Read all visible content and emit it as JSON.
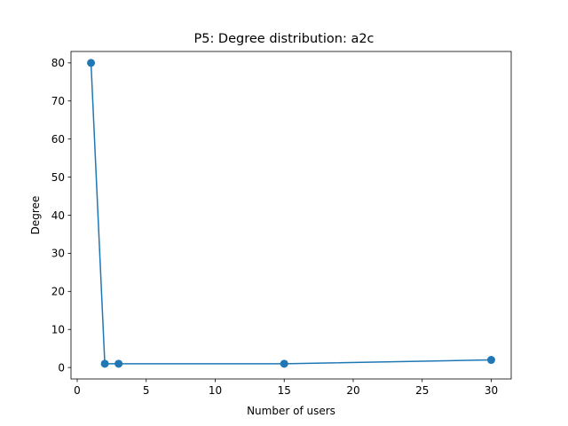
{
  "chart_data": {
    "type": "line",
    "title": "P5: Degree distribution: a2c",
    "xlabel": "Number of users",
    "ylabel": "Degree",
    "xlim": [
      -0.45,
      31.45
    ],
    "ylim": [
      -3.0,
      83.0
    ],
    "xticks": [
      0,
      5,
      10,
      15,
      20,
      25,
      30
    ],
    "yticks": [
      0,
      10,
      20,
      30,
      40,
      50,
      60,
      70,
      80
    ],
    "grid": false,
    "series": [
      {
        "x": [
          1,
          2,
          3,
          15,
          30
        ],
        "y": [
          80,
          1,
          1,
          1,
          2
        ],
        "color": "#1f77b4",
        "marker": "circle"
      }
    ]
  }
}
